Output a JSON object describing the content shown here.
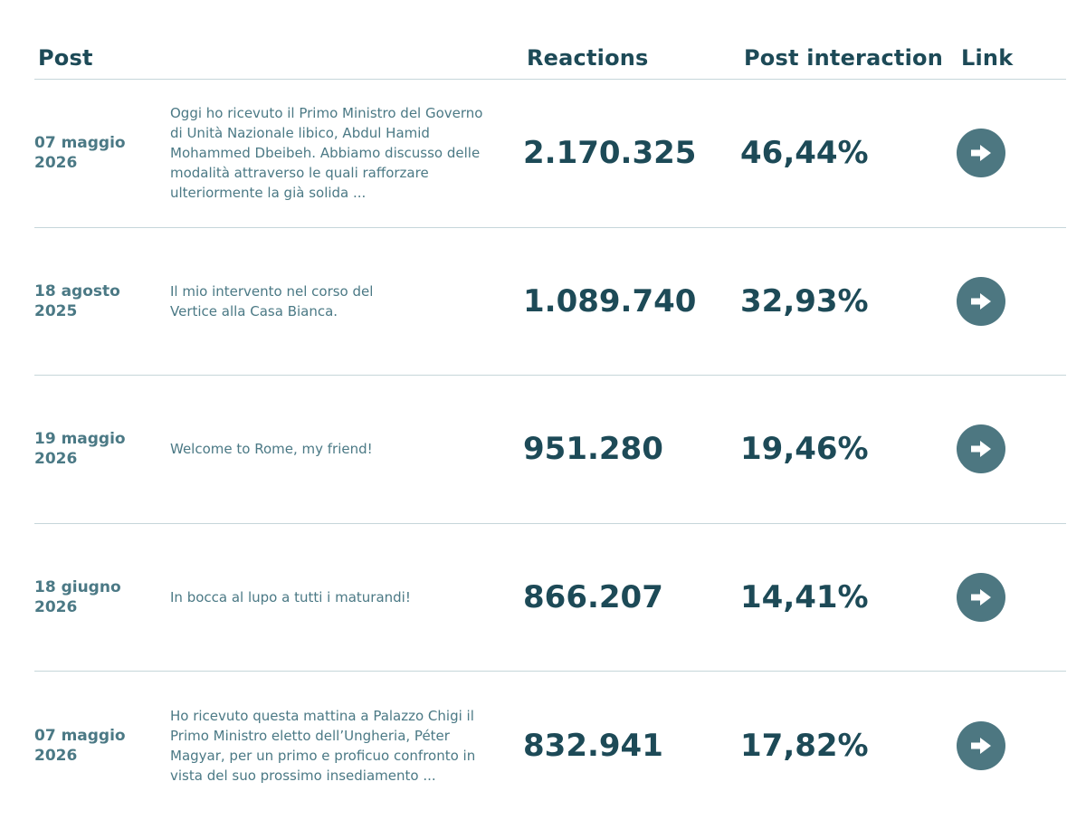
{
  "header": {
    "post": "Post",
    "reactions": "Reactions",
    "post_interaction": "Post interaction",
    "link": "Link"
  },
  "rows": [
    {
      "date_line1": "07 maggio",
      "date_line2": "2026",
      "text": "Oggi ho ricevuto il Primo Ministro del Governo di Unità Nazionale libico, Abdul Hamid Mohammed Dbeibeh. Abbiamo discusso delle modalità attraverso le quali rafforzare ulteriormente la già solida ...",
      "reactions": "2.170.325",
      "interaction": "46,44%",
      "link_icon": "arrow-right-icon"
    },
    {
      "date_line1": "18 agosto",
      "date_line2": "2025",
      "text": "Il mio intervento nel corso del Vertice alla Casa Bianca.",
      "reactions": "1.089.740",
      "interaction": "32,93%",
      "link_icon": "arrow-right-icon"
    },
    {
      "date_line1": "19 maggio",
      "date_line2": "2026",
      "text": "Welcome to Rome, my friend!",
      "reactions": "951.280",
      "interaction": "19,46%",
      "link_icon": "arrow-right-icon"
    },
    {
      "date_line1": "18 giugno",
      "date_line2": "2026",
      "text": "In bocca al lupo a tutti i maturandi!",
      "reactions": "866.207",
      "interaction": "14,41%",
      "link_icon": "arrow-right-icon"
    },
    {
      "date_line1": "07 maggio",
      "date_line2": "2026",
      "text": "Ho ricevuto questa mattina a Palazzo Chigi il Primo Ministro eletto dell’Ungheria, Péter Magyar, per un primo e proficuo confronto in vista del suo prossimo insediamento ...",
      "reactions": "832.941",
      "interaction": "17,82%",
      "link_icon": "arrow-right-icon"
    }
  ],
  "colors": {
    "heading": "#1d4a57",
    "muted": "#4b7985",
    "divider": "#c6d6da",
    "button": "#4d7781"
  }
}
